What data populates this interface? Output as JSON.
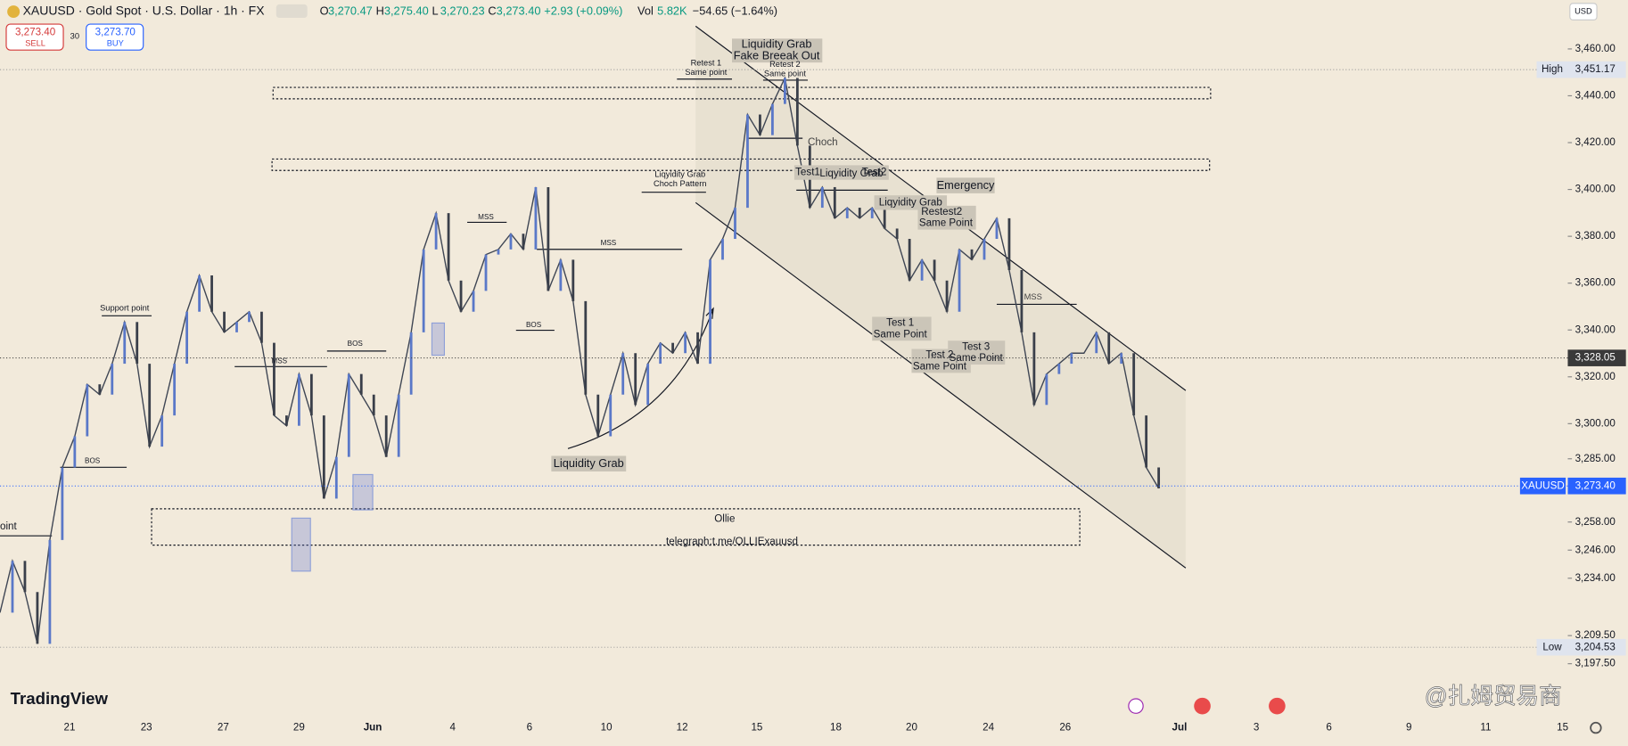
{
  "header": {
    "symbol": "XAUUSD · Gold Spot · U.S. Dollar · 1h · FX",
    "ohlc": [
      {
        "label": "O",
        "value": "3,270.47"
      },
      {
        "label": "H",
        "value": "3,275.40"
      },
      {
        "label": "L",
        "value": "3,270.23"
      },
      {
        "label": "C",
        "value": "3,273.40"
      }
    ],
    "change": "+2.93 (+0.09%)",
    "vol_label": "Vol",
    "vol": "5.82K",
    "indicator": "−54.65 (−1.64%)",
    "sell_price": "3,273.40",
    "sell_label": "SELL",
    "spread": "30",
    "buy_price": "3,273.70",
    "buy_label": "BUY",
    "currency": "USD"
  },
  "price_chart": {
    "ylim": [
      3175,
      3480.8
    ],
    "yticks": [
      {
        "value": 3460,
        "label": "3,460.00"
      },
      {
        "value": 3440,
        "label": "3,440.00"
      },
      {
        "value": 3420,
        "label": "3,420.00"
      },
      {
        "value": 3400,
        "label": "3,400.00"
      },
      {
        "value": 3380,
        "label": "3,380.00"
      },
      {
        "value": 3360,
        "label": "3,360.00"
      },
      {
        "value": 3340,
        "label": "3,340.00"
      },
      {
        "value": 3320,
        "label": "3,320.00"
      },
      {
        "value": 3300,
        "label": "3,300.00"
      },
      {
        "value": 3285,
        "label": "3,285.00"
      },
      {
        "value": 3258,
        "label": "3,258.00"
      },
      {
        "value": 3246,
        "label": "3,246.00"
      },
      {
        "value": 3234,
        "label": "3,234.00"
      },
      {
        "value": 3209.5,
        "label": "3,209.50"
      },
      {
        "value": 3197.5,
        "label": "3,197.50"
      }
    ],
    "time_labels": [
      "21",
      "23",
      "27",
      "29",
      "Jun",
      "4",
      "6",
      "10",
      "12",
      "15",
      "18",
      "20",
      "24",
      "26",
      "Jul",
      "3",
      "6",
      "9",
      "11",
      "15"
    ],
    "closes": [
      3219.3,
      3241.4,
      3228.1,
      3206.0,
      3250.3,
      3281.3,
      3294.6,
      3316.8,
      3312.4,
      3325.6,
      3343.4,
      3325.6,
      3290.2,
      3303.5,
      3325.6,
      3347.8,
      3363.3,
      3347.8,
      3339.0,
      3343.4,
      3347.8,
      3334.5,
      3303.5,
      3299.1,
      3321.2,
      3303.5,
      3268.0,
      3285.8,
      3321.2,
      3312.4,
      3303.5,
      3285.8,
      3312.4,
      3339.0,
      3374.4,
      3389.9,
      3361.1,
      3347.8,
      3356.7,
      3372.2,
      3374.4,
      3381.1,
      3374.4,
      3401.0,
      3356.7,
      3370.0,
      3352.3,
      3312.4,
      3294.6,
      3312.4,
      3330.1,
      3308.0,
      3325.6,
      3334.5,
      3330.1,
      3339.0,
      3325.6,
      3370.0,
      3378.9,
      3392.2,
      3432.0,
      3423.2,
      3436.5,
      3447.6,
      3418.7,
      3392.2,
      3401.0,
      3387.7,
      3392.2,
      3387.7,
      3392.2,
      3383.3,
      3378.9,
      3361.1,
      3370.0,
      3361.1,
      3347.8,
      3374.4,
      3370.0,
      3378.9,
      3387.7,
      3365.6,
      3339.0,
      3308.0,
      3321.2,
      3325.6,
      3330.1,
      3330.1,
      3339.0,
      3325.6,
      3330.1,
      3303.5,
      3281.3,
      3272.4
    ],
    "markers": [
      {
        "label": "High",
        "value": 3451.17,
        "price": "3,451.17"
      },
      {
        "value": 3328.05,
        "price": "3,328.05"
      },
      {
        "label": "XAUUSD",
        "value": 3273.4,
        "price": "3,273.40"
      },
      {
        "label": "Low",
        "value": 3204.53,
        "price": "3,204.53"
      }
    ]
  },
  "annotations": [
    [
      "Liquidity Grab",
      "Fake Breeak Out"
    ],
    [
      "Retest 1",
      "Same point"
    ],
    [
      "Retest 2",
      "Same point"
    ],
    [
      "Choch"
    ],
    [
      "Test1"
    ],
    [
      "Liqyidity Grab"
    ],
    [
      "Test2"
    ],
    [
      "Emergency"
    ],
    [
      "Liqyidity Grab"
    ],
    [
      "Restest2",
      "Same Point"
    ],
    [
      "Liqyidity Grab",
      "Choch Pattern"
    ],
    [
      "MSS"
    ],
    [
      "MSS"
    ],
    [
      "MSS"
    ],
    [
      "MSS"
    ],
    [
      "BOS"
    ],
    [
      "BOS"
    ],
    [
      "BOS"
    ],
    [
      "Support point"
    ],
    [
      "Test 1",
      "Same Point"
    ],
    [
      "Test 2",
      "Same Point"
    ],
    [
      "Test 3",
      "Same Point"
    ],
    [
      "Liquidity Grab"
    ],
    [
      "Ollie"
    ],
    [
      "telegraph:t.me/OLLIExauusd"
    ],
    [
      "oint"
    ]
  ],
  "branding": {
    "logo": "TradingView",
    "watermark": "@扎姆贸易商"
  }
}
